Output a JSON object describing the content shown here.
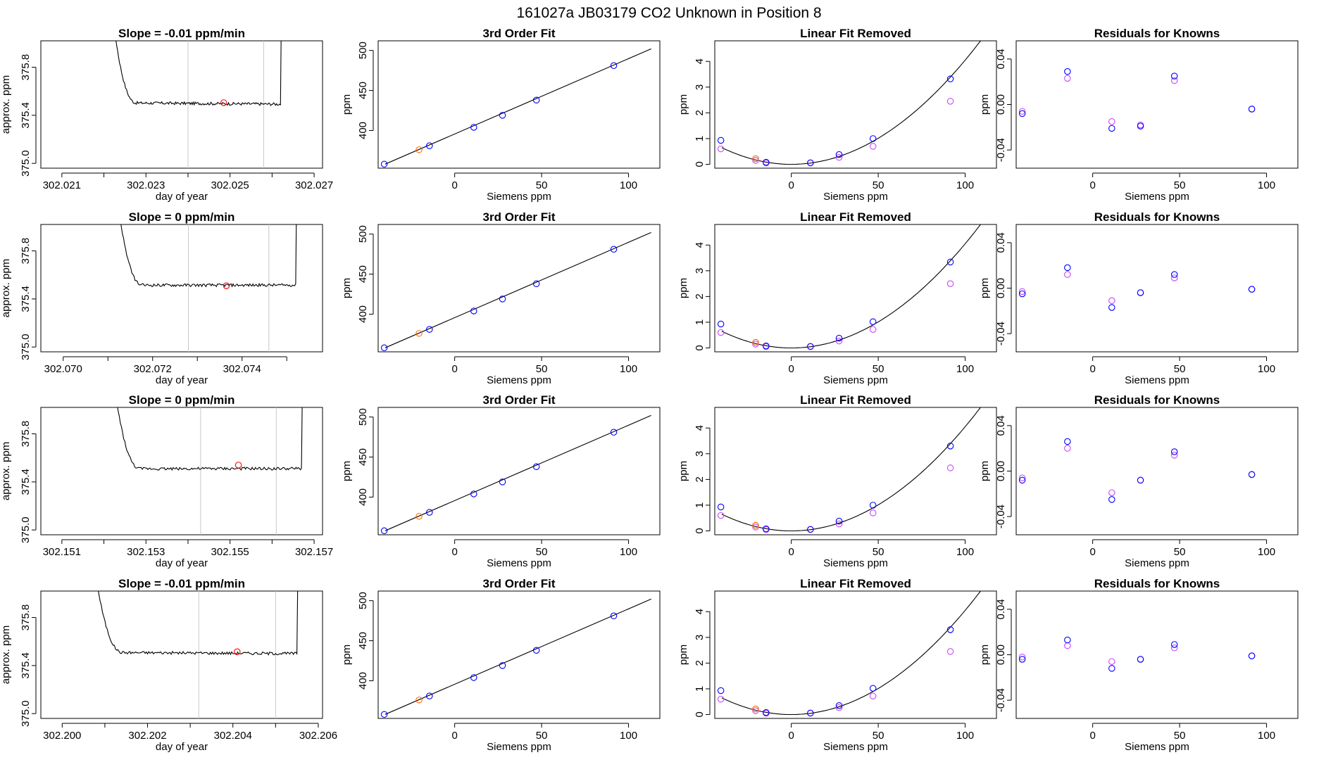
{
  "page": {
    "title": "161027a     JB03179   CO2 Unknown in Position  8"
  },
  "colors": {
    "line": "#000000",
    "axis": "#000000",
    "vline": "#c8c8c8",
    "fit_point": "#ff0000",
    "unknown_point": "#ff6600",
    "known_point": "#0000ff",
    "known_alt_point": "#cc44ff"
  },
  "chart_data": [
    {
      "type": "line",
      "title": "Slope =  -0.01  ppm/min",
      "xlabel": "day of year",
      "ylabel": "approx. ppm",
      "xlim": [
        302.0205,
        302.0272
      ],
      "ylim": [
        374.96,
        376.02
      ],
      "xticks": [
        "302.021",
        "302.023",
        "302.025",
        "302.027"
      ],
      "xtick_values": [
        302.021,
        302.023,
        302.025,
        302.027
      ],
      "extra_xticks": [
        302.022,
        302.024,
        302.026
      ],
      "yticks": [
        "375.0",
        "375.4",
        "375.8"
      ],
      "ytick_values": [
        375.0,
        375.4,
        375.8
      ],
      "vlines": [
        302.024,
        302.0258
      ],
      "marker": {
        "x": 302.02485,
        "y": 375.505
      },
      "trace": {
        "start": 302.022,
        "end": 302.0262,
        "level": 375.505,
        "drift": -0.012,
        "noise": 0.012
      }
    },
    {
      "type": "line",
      "title": "3rd Order Fit",
      "xlabel": "Siemens ppm",
      "ylabel": "ppm",
      "xlim": [
        -44,
        118
      ],
      "ylim": [
        353,
        512
      ],
      "xticks": [
        "0",
        "50",
        "100"
      ],
      "xtick_values": [
        0,
        50,
        100
      ],
      "yticks": [
        "400",
        "450",
        "500"
      ],
      "ytick_values": [
        400,
        450,
        500
      ],
      "fit_line": {
        "x": [
          -40,
          113
        ],
        "y": [
          358,
          502
        ]
      },
      "unknown_points": {
        "x": [
          -20.5
        ],
        "y": [
          376
        ]
      },
      "known_points": {
        "x": [
          -40.5,
          -14.5,
          11,
          27.5,
          47,
          91.5
        ],
        "y": [
          358,
          381,
          404,
          419,
          438,
          481
        ]
      }
    },
    {
      "type": "scatter",
      "title": "Linear Fit Removed",
      "xlabel": "Siemens ppm",
      "ylabel": "ppm",
      "xlim": [
        -44,
        118
      ],
      "ylim": [
        -0.15,
        4.8
      ],
      "xticks": [
        "0",
        "50",
        "100"
      ],
      "xtick_values": [
        0,
        50,
        100
      ],
      "yticks": [
        "0",
        "1",
        "2",
        "3",
        "4"
      ],
      "ytick_values": [
        0,
        1,
        2,
        3,
        4
      ],
      "curve": {
        "x0": 0,
        "a": 0.000405,
        "c": 0.0,
        "xmin": -40,
        "xmax": 113
      },
      "unknown_points": {
        "x": [
          -20.5
        ],
        "y": [
          0.22
        ]
      },
      "known_points": {
        "x": [
          -40.5,
          -14.5,
          11,
          27.5,
          47,
          91.5
        ],
        "y": [
          0.93,
          0.08,
          0.06,
          0.38,
          1.0,
          3.32
        ]
      },
      "known_alt_points": {
        "x": [
          -40.5,
          -20.5,
          -14.5,
          11,
          27.5,
          47,
          91.5
        ],
        "y": [
          0.6,
          0.15,
          0.05,
          0.05,
          0.27,
          0.7,
          2.45
        ]
      }
    },
    {
      "type": "scatter",
      "title": "Residuals for Knowns",
      "xlabel": "Siemens ppm",
      "ylabel": "ppm",
      "xlim": [
        -44,
        118
      ],
      "ylim": [
        -0.056,
        0.056
      ],
      "xticks": [
        "0",
        "50",
        "100"
      ],
      "xtick_values": [
        0,
        50,
        100
      ],
      "yticks": [
        "-0.04",
        "0.00",
        "0.04"
      ],
      "ytick_values": [
        -0.04,
        0.0,
        0.04
      ],
      "known_points": {
        "x": [
          -40.5,
          -14.5,
          11,
          27.5,
          47,
          91.5
        ],
        "y": [
          -0.008,
          0.029,
          -0.021,
          -0.019,
          0.025,
          -0.004
        ]
      },
      "known_alt_points": {
        "x": [
          -40.5,
          -14.5,
          11,
          27.5,
          47,
          91.5
        ],
        "y": [
          -0.006,
          0.023,
          -0.015,
          -0.018,
          0.021,
          -0.004
        ]
      }
    },
    {
      "type": "line",
      "title": "Slope =  0  ppm/min",
      "xlabel": "day of year",
      "ylabel": "approx. ppm",
      "xlim": [
        302.0695,
        302.0758
      ],
      "ylim": [
        374.96,
        376.02
      ],
      "xticks": [
        "302.070",
        "302.072",
        "302.074"
      ],
      "xtick_values": [
        302.07,
        302.072,
        302.074
      ],
      "extra_xticks": [
        302.071,
        302.073,
        302.075
      ],
      "yticks": [
        "375.0",
        "375.4",
        "375.8"
      ],
      "ytick_values": [
        375.0,
        375.4,
        375.8
      ],
      "vlines": [
        302.0728,
        302.0746
      ],
      "marker": {
        "x": 302.07365,
        "y": 375.51
      },
      "trace": {
        "start": 302.071,
        "end": 302.0752,
        "level": 375.515,
        "drift": 0.0,
        "noise": 0.012
      }
    },
    {
      "type": "line",
      "title": "3rd Order Fit",
      "xlabel": "Siemens ppm",
      "ylabel": "ppm",
      "xlim": [
        -44,
        118
      ],
      "ylim": [
        353,
        512
      ],
      "xticks": [
        "0",
        "50",
        "100"
      ],
      "xtick_values": [
        0,
        50,
        100
      ],
      "yticks": [
        "400",
        "450",
        "500"
      ],
      "ytick_values": [
        400,
        450,
        500
      ],
      "fit_line": {
        "x": [
          -40,
          113
        ],
        "y": [
          358,
          502
        ]
      },
      "unknown_points": {
        "x": [
          -20.5
        ],
        "y": [
          376
        ]
      },
      "known_points": {
        "x": [
          -40.5,
          -14.5,
          11,
          27.5,
          47,
          91.5
        ],
        "y": [
          358,
          381,
          404,
          419,
          438,
          481
        ]
      }
    },
    {
      "type": "scatter",
      "title": "Linear Fit Removed",
      "xlabel": "Siemens ppm",
      "ylabel": "ppm",
      "xlim": [
        -44,
        118
      ],
      "ylim": [
        -0.15,
        4.8
      ],
      "xticks": [
        "0",
        "50",
        "100"
      ],
      "xtick_values": [
        0,
        50,
        100
      ],
      "yticks": [
        "0",
        "1",
        "2",
        "3",
        "4"
      ],
      "ytick_values": [
        0,
        1,
        2,
        3,
        4
      ],
      "curve": {
        "x0": 0,
        "a": 0.000405,
        "c": 0.0,
        "xmin": -40,
        "xmax": 113
      },
      "unknown_points": {
        "x": [
          -20.5
        ],
        "y": [
          0.22
        ]
      },
      "known_points": {
        "x": [
          -40.5,
          -14.5,
          11,
          27.5,
          47,
          91.5
        ],
        "y": [
          0.93,
          0.08,
          0.06,
          0.38,
          1.02,
          3.34
        ]
      },
      "known_alt_points": {
        "x": [
          -40.5,
          -20.5,
          -14.5,
          11,
          27.5,
          47,
          91.5
        ],
        "y": [
          0.6,
          0.15,
          0.05,
          0.05,
          0.27,
          0.72,
          2.5
        ]
      }
    },
    {
      "type": "scatter",
      "title": "Residuals for Knowns",
      "xlabel": "Siemens ppm",
      "ylabel": "ppm",
      "xlim": [
        -44,
        118
      ],
      "ylim": [
        -0.056,
        0.056
      ],
      "xticks": [
        "0",
        "50",
        "100"
      ],
      "xtick_values": [
        0,
        50,
        100
      ],
      "yticks": [
        "-0.04",
        "0.00",
        "0.04"
      ],
      "ytick_values": [
        -0.04,
        0.0,
        0.04
      ],
      "known_points": {
        "x": [
          -40.5,
          -14.5,
          11,
          27.5,
          47,
          91.5
        ],
        "y": [
          -0.005,
          0.018,
          -0.017,
          -0.004,
          0.012,
          -0.001
        ]
      },
      "known_alt_points": {
        "x": [
          -40.5,
          -14.5,
          11,
          27.5,
          47,
          91.5
        ],
        "y": [
          -0.003,
          0.012,
          -0.011,
          -0.004,
          0.009,
          -0.001
        ]
      }
    },
    {
      "type": "line",
      "title": "Slope =  0  ppm/min",
      "xlabel": "day of year",
      "ylabel": "approx. ppm",
      "xlim": [
        302.1505,
        302.1572
      ],
      "ylim": [
        374.96,
        376.02
      ],
      "xticks": [
        "302.151",
        "302.153",
        "302.155",
        "302.157"
      ],
      "xtick_values": [
        302.151,
        302.153,
        302.155,
        302.157
      ],
      "extra_xticks": [
        302.152,
        302.154,
        302.156
      ],
      "yticks": [
        "375.0",
        "375.4",
        "375.8"
      ],
      "ytick_values": [
        375.0,
        375.4,
        375.8
      ],
      "vlines": [
        302.1543,
        302.1561
      ],
      "marker": {
        "x": 302.1552,
        "y": 375.54
      },
      "trace": {
        "start": 302.152,
        "end": 302.1567,
        "level": 375.51,
        "drift": 0.0,
        "noise": 0.012
      }
    },
    {
      "type": "line",
      "title": "3rd Order Fit",
      "xlabel": "Siemens ppm",
      "ylabel": "ppm",
      "xlim": [
        -44,
        118
      ],
      "ylim": [
        353,
        512
      ],
      "xticks": [
        "0",
        "50",
        "100"
      ],
      "xtick_values": [
        0,
        50,
        100
      ],
      "yticks": [
        "400",
        "450",
        "500"
      ],
      "ytick_values": [
        400,
        450,
        500
      ],
      "fit_line": {
        "x": [
          -40,
          113
        ],
        "y": [
          358,
          502
        ]
      },
      "unknown_points": {
        "x": [
          -20.5
        ],
        "y": [
          376
        ]
      },
      "known_points": {
        "x": [
          -40.5,
          -14.5,
          11,
          27.5,
          47,
          91.5
        ],
        "y": [
          358,
          381,
          404,
          419,
          438,
          481
        ]
      }
    },
    {
      "type": "scatter",
      "title": "Linear Fit Removed",
      "xlabel": "Siemens ppm",
      "ylabel": "ppm",
      "xlim": [
        -44,
        118
      ],
      "ylim": [
        -0.15,
        4.8
      ],
      "xticks": [
        "0",
        "50",
        "100"
      ],
      "xtick_values": [
        0,
        50,
        100
      ],
      "yticks": [
        "0",
        "1",
        "2",
        "3",
        "4"
      ],
      "ytick_values": [
        0,
        1,
        2,
        3,
        4
      ],
      "curve": {
        "x0": 0,
        "a": 0.000405,
        "c": 0.0,
        "xmin": -40,
        "xmax": 113
      },
      "unknown_points": {
        "x": [
          -20.5
        ],
        "y": [
          0.22
        ]
      },
      "known_points": {
        "x": [
          -40.5,
          -14.5,
          11,
          27.5,
          47,
          91.5
        ],
        "y": [
          0.93,
          0.08,
          0.06,
          0.38,
          1.0,
          3.3
        ]
      },
      "known_alt_points": {
        "x": [
          -40.5,
          -20.5,
          -14.5,
          11,
          27.5,
          47,
          91.5
        ],
        "y": [
          0.6,
          0.15,
          0.05,
          0.05,
          0.27,
          0.7,
          2.45
        ]
      }
    },
    {
      "type": "scatter",
      "title": "Residuals for Knowns",
      "xlabel": "Siemens ppm",
      "ylabel": "ppm",
      "xlim": [
        -44,
        118
      ],
      "ylim": [
        -0.056,
        0.056
      ],
      "xticks": [
        "0",
        "50",
        "100"
      ],
      "xtick_values": [
        0,
        50,
        100
      ],
      "yticks": [
        "-0.04",
        "0.00",
        "0.04"
      ],
      "ytick_values": [
        -0.04,
        0.0,
        0.04
      ],
      "known_points": {
        "x": [
          -40.5,
          -14.5,
          11,
          27.5,
          47,
          91.5
        ],
        "y": [
          -0.008,
          0.026,
          -0.025,
          -0.008,
          0.017,
          -0.003
        ]
      },
      "known_alt_points": {
        "x": [
          -40.5,
          -14.5,
          11,
          27.5,
          47,
          91.5
        ],
        "y": [
          -0.006,
          0.02,
          -0.019,
          -0.008,
          0.014,
          -0.003
        ]
      }
    },
    {
      "type": "line",
      "title": "Slope =  -0.01  ppm/min",
      "xlabel": "day of year",
      "ylabel": "approx. ppm",
      "xlim": [
        302.1995,
        302.2061
      ],
      "ylim": [
        374.96,
        376.02
      ],
      "xticks": [
        "302.200",
        "302.202",
        "302.204",
        "302.206"
      ],
      "xtick_values": [
        302.2,
        302.202,
        302.204,
        302.206
      ],
      "extra_xticks": [
        302.201,
        302.203,
        302.205
      ],
      "yticks": [
        "375.0",
        "375.4",
        "375.8"
      ],
      "ytick_values": [
        375.0,
        375.4,
        375.8
      ],
      "vlines": [
        302.2032,
        302.205
      ],
      "marker": {
        "x": 302.2041,
        "y": 375.515
      },
      "trace": {
        "start": 302.2005,
        "end": 302.2055,
        "level": 375.51,
        "drift": -0.01,
        "noise": 0.012
      }
    },
    {
      "type": "line",
      "title": "3rd Order Fit",
      "xlabel": "Siemens ppm",
      "ylabel": "ppm",
      "xlim": [
        -44,
        118
      ],
      "ylim": [
        353,
        512
      ],
      "xticks": [
        "0",
        "50",
        "100"
      ],
      "xtick_values": [
        0,
        50,
        100
      ],
      "yticks": [
        "400",
        "450",
        "500"
      ],
      "ytick_values": [
        400,
        450,
        500
      ],
      "fit_line": {
        "x": [
          -40,
          113
        ],
        "y": [
          358,
          502
        ]
      },
      "unknown_points": {
        "x": [
          -20.5
        ],
        "y": [
          376
        ]
      },
      "known_points": {
        "x": [
          -40.5,
          -14.5,
          11,
          27.5,
          47,
          91.5
        ],
        "y": [
          358,
          381,
          404,
          419,
          438,
          481
        ]
      }
    },
    {
      "type": "scatter",
      "title": "Linear Fit Removed",
      "xlabel": "Siemens ppm",
      "ylabel": "ppm",
      "xlim": [
        -44,
        118
      ],
      "ylim": [
        -0.15,
        4.8
      ],
      "xticks": [
        "0",
        "50",
        "100"
      ],
      "xtick_values": [
        0,
        50,
        100
      ],
      "yticks": [
        "0",
        "1",
        "2",
        "3",
        "4"
      ],
      "ytick_values": [
        0,
        1,
        2,
        3,
        4
      ],
      "curve": {
        "x0": 0,
        "a": 0.000405,
        "c": 0.0,
        "xmin": -40,
        "xmax": 113
      },
      "unknown_points": {
        "x": [
          -20.5
        ],
        "y": [
          0.22
        ]
      },
      "known_points": {
        "x": [
          -40.5,
          -14.5,
          11,
          27.5,
          47,
          91.5
        ],
        "y": [
          0.93,
          0.08,
          0.06,
          0.35,
          1.02,
          3.3
        ]
      },
      "known_alt_points": {
        "x": [
          -40.5,
          -20.5,
          -14.5,
          11,
          27.5,
          47,
          91.5
        ],
        "y": [
          0.6,
          0.15,
          0.05,
          0.05,
          0.27,
          0.72,
          2.45
        ]
      }
    },
    {
      "type": "scatter",
      "title": "Residuals for Knowns",
      "xlabel": "Siemens ppm",
      "ylabel": "ppm",
      "xlim": [
        -44,
        118
      ],
      "ylim": [
        -0.056,
        0.056
      ],
      "xticks": [
        "0",
        "50",
        "100"
      ],
      "xtick_values": [
        0,
        50,
        100
      ],
      "yticks": [
        "-0.04",
        "0.00",
        "0.04"
      ],
      "ytick_values": [
        -0.04,
        0.0,
        0.04
      ],
      "known_points": {
        "x": [
          -40.5,
          -14.5,
          11,
          27.5,
          47,
          91.5
        ],
        "y": [
          -0.004,
          0.013,
          -0.012,
          -0.004,
          0.009,
          -0.001
        ]
      },
      "known_alt_points": {
        "x": [
          -40.5,
          -14.5,
          11,
          27.5,
          47,
          91.5
        ],
        "y": [
          -0.002,
          0.008,
          -0.006,
          -0.004,
          0.006,
          -0.001
        ]
      }
    }
  ]
}
